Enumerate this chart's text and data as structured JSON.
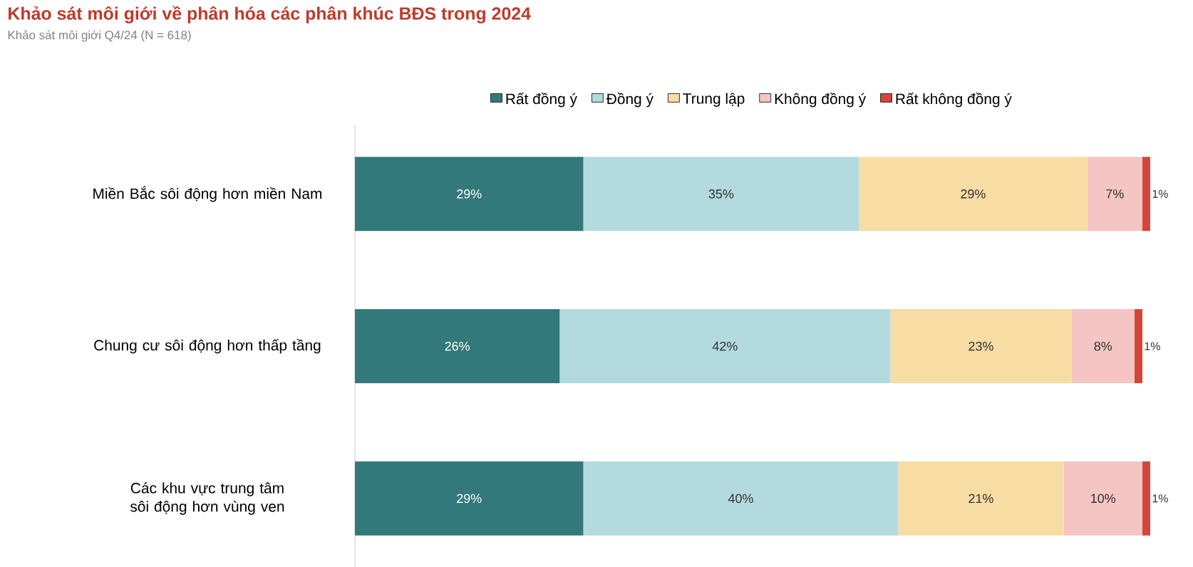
{
  "chart_data": {
    "type": "bar",
    "orientation": "horizontal",
    "stacked": true,
    "title": "Khảo sát môi giới về phân hóa các phân khúc BĐS trong 2024",
    "subtitle": "Khảo sát môi giới Q4/24 (N = 618)",
    "legend": "top",
    "categories": [
      "Miền Bắc sôi động hơn miền Nam",
      "Chung cư sôi động hơn thấp tầng",
      "Các khu vực trung tâm sôi động hơn vùng ven"
    ],
    "series": [
      {
        "name": "Rất đồng ý",
        "color": "#33787a",
        "values": [
          29,
          26,
          29
        ],
        "value_labels": [
          "29%",
          "26%",
          "29%"
        ]
      },
      {
        "name": "Đồng ý",
        "color": "#b3dade",
        "values": [
          35,
          42,
          40
        ],
        "value_labels": [
          "35%",
          "42%",
          "40%"
        ]
      },
      {
        "name": "Trung lập",
        "color": "#f7dca4",
        "values": [
          29,
          23,
          21
        ],
        "value_labels": [
          "29%",
          "23%",
          "21%"
        ]
      },
      {
        "name": "Không đồng ý",
        "color": "#f5c5c3",
        "values": [
          7,
          8,
          10
        ],
        "value_labels": [
          "7%",
          "8%",
          "10%"
        ]
      },
      {
        "name": "Rất không đồng ý",
        "color": "#d2473a",
        "values": [
          1,
          1,
          1
        ],
        "value_labels": [
          "1%",
          "1%",
          "1%"
        ]
      }
    ]
  }
}
